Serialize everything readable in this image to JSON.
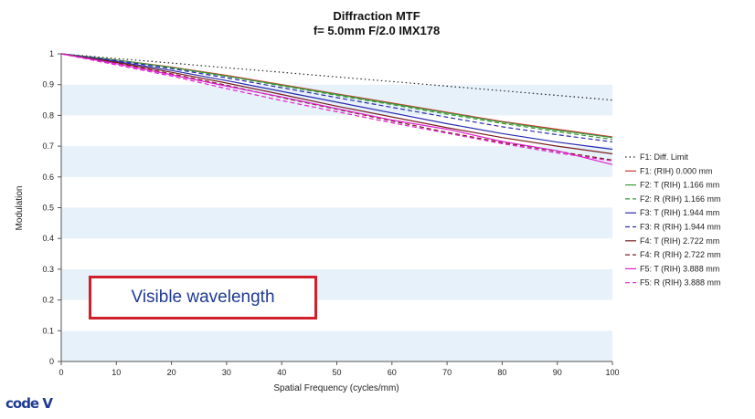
{
  "chart_data": {
    "type": "line",
    "title": "Diffraction MTF",
    "subtitle": "f= 5.0mm F/2.0 IMX178",
    "xlabel": "Spatial Frequency (cycles/mm)",
    "ylabel": "Modulation",
    "xlim": [
      0,
      100
    ],
    "ylim": [
      0,
      1
    ],
    "x_ticks": [
      "0",
      "10",
      "20",
      "30",
      "40",
      "50",
      "60",
      "70",
      "80",
      "90",
      "100"
    ],
    "y_ticks": [
      "0",
      "0.1",
      "0.2",
      "0.3",
      "0.4",
      "0.5",
      "0.6",
      "0.7",
      "0.8",
      "0.9",
      "1"
    ],
    "grid": "horizontal alternating bands",
    "legend_position": "right",
    "x": [
      0,
      10,
      20,
      30,
      40,
      50,
      60,
      70,
      80,
      90,
      100
    ],
    "series": [
      {
        "name": "F1: Diff. Limit",
        "color": "#222222",
        "dash": "dotted",
        "values": [
          1.0,
          0.985,
          0.97,
          0.955,
          0.94,
          0.925,
          0.91,
          0.895,
          0.88,
          0.865,
          0.85
        ]
      },
      {
        "name": "F1: (RIH) 0.000 mm",
        "color": "#d93030",
        "dash": "solid",
        "values": [
          1.0,
          0.98,
          0.957,
          0.93,
          0.9,
          0.87,
          0.84,
          0.81,
          0.78,
          0.755,
          0.73
        ]
      },
      {
        "name": "F2: T (RIH) 1.166 mm",
        "color": "#3a9a3a",
        "dash": "solid",
        "values": [
          1.0,
          0.98,
          0.956,
          0.928,
          0.898,
          0.868,
          0.838,
          0.808,
          0.778,
          0.752,
          0.728
        ]
      },
      {
        "name": "F2: R (RIH) 1.166 mm",
        "color": "#3a9a3a",
        "dash": "dashed",
        "values": [
          1.0,
          0.979,
          0.955,
          0.927,
          0.896,
          0.865,
          0.835,
          0.804,
          0.774,
          0.747,
          0.722
        ]
      },
      {
        "name": "F3: T (RIH) 1.944 mm",
        "color": "#2a2ab0",
        "dash": "solid",
        "values": [
          1.0,
          0.975,
          0.946,
          0.913,
          0.878,
          0.843,
          0.808,
          0.773,
          0.741,
          0.713,
          0.69
        ]
      },
      {
        "name": "F3: R (RIH) 1.944 mm",
        "color": "#2a2ab0",
        "dash": "dashed",
        "values": [
          1.0,
          0.978,
          0.952,
          0.922,
          0.89,
          0.858,
          0.826,
          0.794,
          0.763,
          0.737,
          0.714
        ]
      },
      {
        "name": "F4: T (RIH) 2.722 mm",
        "color": "#7a1f1f",
        "dash": "solid",
        "values": [
          1.0,
          0.972,
          0.94,
          0.905,
          0.868,
          0.83,
          0.795,
          0.76,
          0.728,
          0.7,
          0.675
        ]
      },
      {
        "name": "F4: R (RIH) 2.722 mm",
        "color": "#7a1f1f",
        "dash": "dashed",
        "values": [
          1.0,
          0.97,
          0.935,
          0.898,
          0.858,
          0.82,
          0.782,
          0.745,
          0.712,
          0.683,
          0.655
        ]
      },
      {
        "name": "F5: T (RIH) 3.888 mm",
        "color": "#e020d0",
        "dash": "solid",
        "values": [
          1.0,
          0.968,
          0.932,
          0.895,
          0.86,
          0.822,
          0.785,
          0.755,
          0.715,
          0.685,
          0.64
        ]
      },
      {
        "name": "F5: R (RIH) 3.888 mm",
        "color": "#e020d0",
        "dash": "dashed",
        "values": [
          1.0,
          0.964,
          0.928,
          0.887,
          0.848,
          0.812,
          0.776,
          0.742,
          0.708,
          0.678,
          0.652
        ]
      }
    ],
    "annotation": "Visible wavelength"
  },
  "logo_text": "code V"
}
